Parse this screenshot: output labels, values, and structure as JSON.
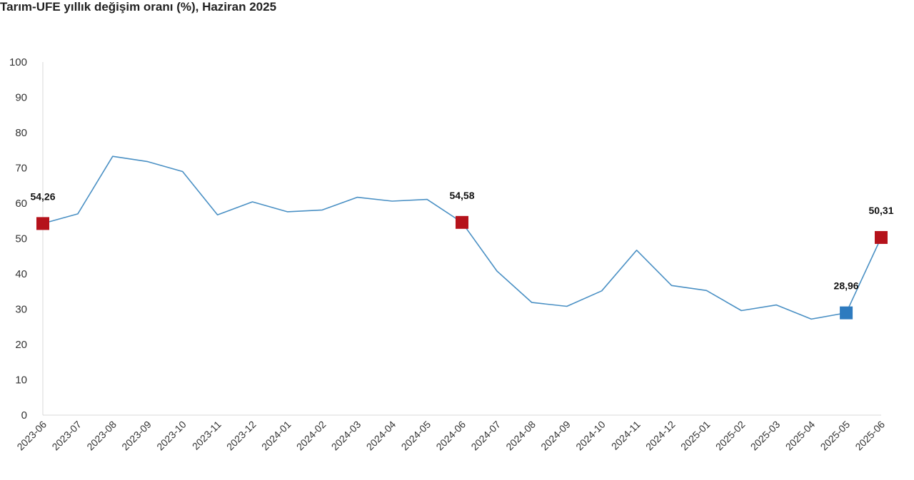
{
  "chart_data": {
    "type": "line",
    "title": "Tarım-UFE yıllık değişim oranı (%), Haziran 2025",
    "xlabel": "",
    "ylabel": "",
    "ylim": [
      0,
      100
    ],
    "yticks": [
      0,
      10,
      20,
      30,
      40,
      50,
      60,
      70,
      80,
      90,
      100
    ],
    "grid": false,
    "categories": [
      "2023-06",
      "2023-07",
      "2023-08",
      "2023-09",
      "2023-10",
      "2023-11",
      "2023-12",
      "2024-01",
      "2024-02",
      "2024-03",
      "2024-04",
      "2024-05",
      "2024-06",
      "2024-07",
      "2024-08",
      "2024-09",
      "2024-10",
      "2024-11",
      "2024-12",
      "2025-01",
      "2025-02",
      "2025-03",
      "2025-04",
      "2025-05",
      "2025-06"
    ],
    "series": [
      {
        "values": [
          54.26,
          57.0,
          73.3,
          71.8,
          69.0,
          56.7,
          60.4,
          57.6,
          58.1,
          61.7,
          60.6,
          61.1,
          54.58,
          40.8,
          31.9,
          30.8,
          35.2,
          46.7,
          36.7,
          35.3,
          29.6,
          31.2,
          27.2,
          28.96,
          50.31
        ],
        "color": "#4a90c4"
      }
    ],
    "highlighted_points": [
      {
        "index": 0,
        "label": "54,26",
        "color": "#b5121b"
      },
      {
        "index": 12,
        "label": "54,58",
        "color": "#b5121b"
      },
      {
        "index": 23,
        "label": "28,96",
        "color": "#2e7bbf"
      },
      {
        "index": 24,
        "label": "50,31",
        "color": "#b5121b"
      }
    ]
  }
}
